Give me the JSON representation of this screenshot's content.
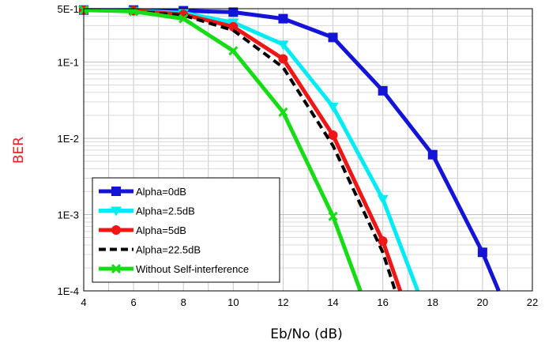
{
  "chart_data": {
    "type": "line",
    "xlabel": "Eb/No (dB)",
    "ylabel": "BER",
    "x_ticks": [
      4,
      6,
      8,
      10,
      12,
      14,
      16,
      18,
      20,
      22
    ],
    "xlim": [
      4,
      22
    ],
    "y_scale": "log",
    "ylim": [
      0.0001,
      0.5
    ],
    "y_tick_labels": [
      {
        "value": 0.5,
        "label": "5E-1"
      },
      {
        "value": 0.1,
        "label": "1E-1"
      },
      {
        "value": 0.01,
        "label": "1E-2"
      },
      {
        "value": 0.001,
        "label": "1E-3"
      },
      {
        "value": 0.0001,
        "label": "1E-4"
      }
    ],
    "grid": true,
    "legend_position": "bottom-left",
    "series": [
      {
        "name": "Alpha=0dB",
        "color": "#1414d9",
        "marker": "square",
        "dash": false,
        "x": [
          4,
          6,
          8,
          10,
          12,
          14,
          16,
          18,
          20,
          20.65
        ],
        "y": [
          0.48,
          0.48,
          0.47,
          0.45,
          0.37,
          0.21,
          0.042,
          0.0061,
          0.00032,
          0.0001
        ]
      },
      {
        "name": "Alpha=2.5dB",
        "color": "#00ecf4",
        "marker": "triangle-down",
        "dash": false,
        "x": [
          4,
          6,
          8,
          10,
          12,
          14,
          16,
          17.4
        ],
        "y": [
          0.48,
          0.47,
          0.44,
          0.33,
          0.17,
          0.026,
          0.0016,
          0.0001
        ]
      },
      {
        "name": "Alpha=5dB",
        "color": "#f01616",
        "marker": "circle",
        "dash": false,
        "x": [
          4,
          6,
          8,
          10,
          12,
          14,
          16,
          16.7
        ],
        "y": [
          0.48,
          0.47,
          0.42,
          0.29,
          0.11,
          0.011,
          0.00045,
          0.0001
        ]
      },
      {
        "name": "Alpha=22.5dB",
        "color": "#000000",
        "marker": "none",
        "dash": true,
        "x": [
          4,
          6,
          8,
          10,
          12,
          14,
          16,
          16.5
        ],
        "y": [
          0.48,
          0.46,
          0.41,
          0.26,
          0.085,
          0.008,
          0.00032,
          0.0001
        ]
      },
      {
        "name": "Without Self-interference",
        "color": "#16dc16",
        "marker": "x",
        "dash": false,
        "x": [
          4,
          6,
          8,
          10,
          12,
          14,
          15.1
        ],
        "y": [
          0.48,
          0.46,
          0.37,
          0.14,
          0.022,
          0.00095,
          0.0001
        ]
      }
    ]
  }
}
